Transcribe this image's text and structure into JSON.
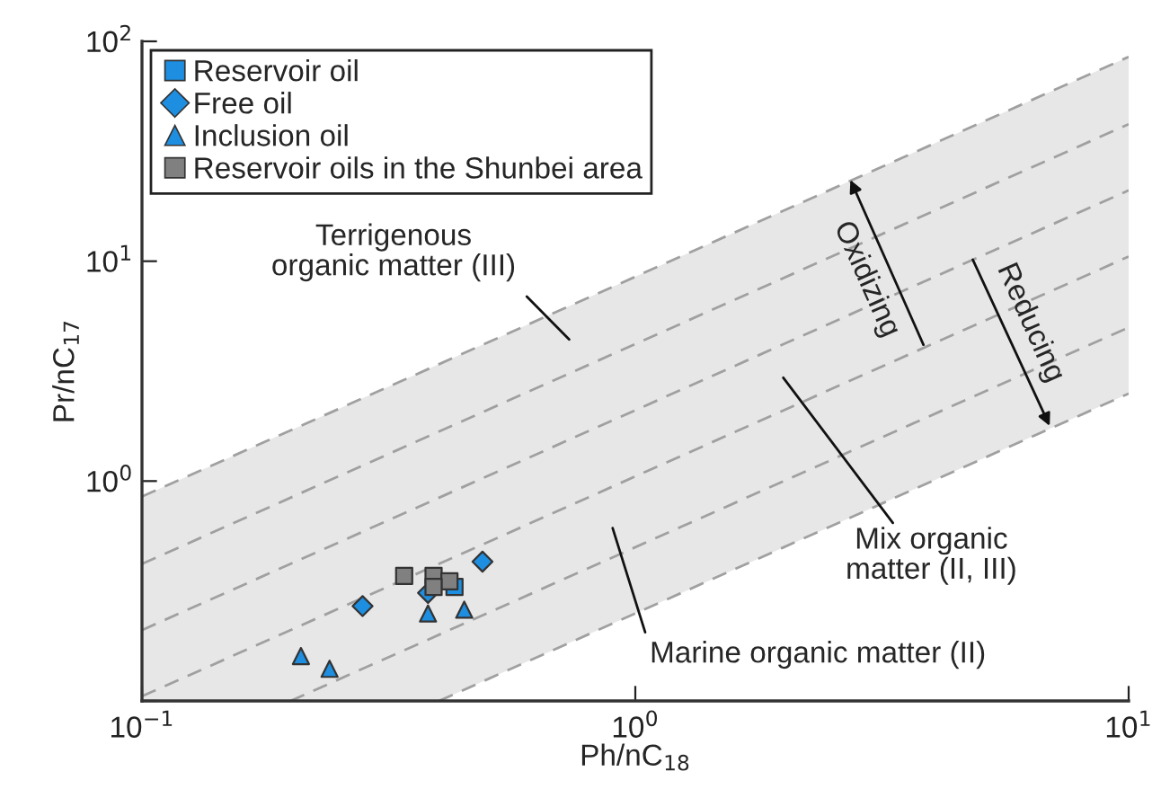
{
  "chart_data": {
    "type": "scatter",
    "xlabel": "Ph/nC$_{18}$",
    "ylabel": "Pr/nC$_{17}$",
    "log": "xy",
    "grid": false,
    "legend": "top left",
    "xlim": [
      0.1,
      10
    ],
    "ylim": [
      0.1,
      100
    ],
    "xticks": [
      {
        "value": 0.1,
        "label": "10$^{−1}$"
      },
      {
        "value": 1,
        "label": "10$^{0}$"
      },
      {
        "value": 10,
        "label": "10$^{1}$"
      }
    ],
    "yticks": [
      {
        "value": 0.1,
        "label": null
      },
      {
        "value": 1,
        "label": "10$^{0}$"
      },
      {
        "value": 10,
        "label": "10$^{1}$"
      },
      {
        "value": 100,
        "label": "10$^{2}$"
      }
    ],
    "series": [
      {
        "type": "line",
        "color": "#a0a0a0",
        "line_style": "dashed",
        "marker": "none",
        "x": [
          0.1,
          10
        ],
        "values": [
          0.85,
          85
        ]
      },
      {
        "type": "line",
        "color": "#a0a0a0",
        "line_style": "dashed",
        "marker": "none",
        "x": [
          0.1,
          10
        ],
        "values": [
          0.42,
          42
        ]
      },
      {
        "type": "line",
        "color": "#a0a0a0",
        "line_style": "dashed",
        "marker": "none",
        "x": [
          0.1,
          0.4,
          10
        ],
        "values": [
          0.21,
          0.84,
          21
        ],
        "lower": [
          0.1,
          0.1,
          2.5
        ],
        "upper": [
          0.85,
          3.4,
          85
        ]
      },
      {
        "type": "line",
        "color": "#a0a0a0",
        "line_style": "dashed",
        "marker": "none",
        "x": [
          0.1,
          10
        ],
        "values": [
          0.105,
          10.5
        ]
      },
      {
        "type": "line",
        "color": "#a0a0a0",
        "line_style": "dashed",
        "marker": "none",
        "x": [
          0.2,
          10
        ],
        "values": [
          0.1,
          5
        ]
      },
      {
        "type": "line",
        "color": "#a0a0a0",
        "line_style": "dashed",
        "marker": "none",
        "x": [
          0.4,
          10
        ],
        "values": [
          0.1,
          2.5
        ]
      },
      {
        "name": "Reservoir oil",
        "color": "#1e8fe0",
        "marker": "square",
        "x": [
          0.43
        ],
        "values": [
          0.33
        ]
      },
      {
        "name": "Free oil",
        "color": "#1e8fe0",
        "marker": "diamond",
        "x": [
          0.49,
          0.28,
          0.38
        ],
        "values": [
          0.43,
          0.27,
          0.31
        ]
      },
      {
        "name": "Inclusion oil",
        "color": "#1e8fe0",
        "marker": "triangle",
        "x": [
          0.38,
          0.45,
          0.21,
          0.24
        ],
        "values": [
          0.25,
          0.26,
          0.16,
          0.14
        ]
      },
      {
        "name": "Reservoir oils in the Shunbei area",
        "color": "#808080",
        "marker": "square",
        "x": [
          0.34,
          0.39,
          0.42,
          0.39
        ],
        "values": [
          0.37,
          0.37,
          0.35,
          0.33
        ]
      }
    ],
    "annotations": [
      "Terrigenous\norganic matter (III)",
      "Mix organic\nmatter (II, III)",
      "Marine organic matter (II)",
      "Oxidizing",
      "Reducing"
    ]
  }
}
